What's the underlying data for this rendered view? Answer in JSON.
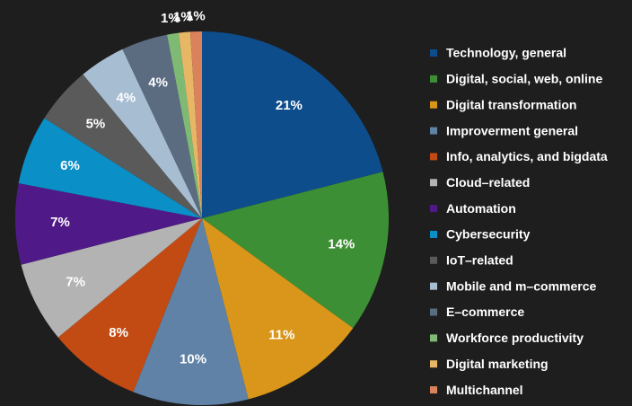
{
  "chart_data": {
    "type": "pie",
    "categories": [
      "Technology, general",
      "Digital, social, web, online",
      "Digital transformation",
      "Improverment general",
      "Info, analytics, and bigdata",
      "Cloud–related",
      "Automation",
      "Cybersecurity",
      "IoT–related",
      "Mobile and m–commerce",
      "E–commerce",
      "Workforce productivity",
      "Digital marketing",
      "Multichannel"
    ],
    "values": [
      21,
      14,
      11,
      10,
      8,
      7,
      7,
      6,
      5,
      4,
      4,
      1,
      1,
      1
    ],
    "value_labels": [
      "21%",
      "14%",
      "11%",
      "10%",
      "8%",
      "7%",
      "7%",
      "6%",
      "5%",
      "4%",
      "4%",
      "1%",
      "1%",
      "1%"
    ],
    "colors": [
      "#0e4d8c",
      "#3d8f35",
      "#d9961a",
      "#5f82a6",
      "#c24a13",
      "#b3b3b3",
      "#4f1a87",
      "#0a8fc7",
      "#5a5a5a",
      "#a7bdd2",
      "#5b6b80",
      "#7fba75",
      "#e8b766",
      "#d9825b"
    ],
    "legend": "right"
  }
}
